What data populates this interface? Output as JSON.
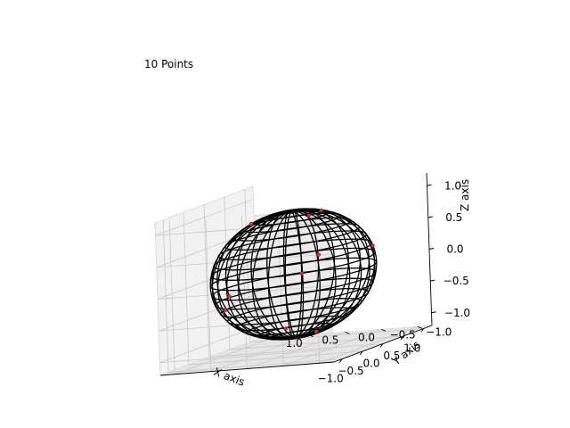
{
  "chart_data": {
    "type": "scatter",
    "projection": "3d",
    "title": "10 Points",
    "xlabel": "X axis",
    "ylabel": "Y axis",
    "zlabel": "Z axis",
    "xlim": [
      -1.2,
      1.2
    ],
    "ylim": [
      -1.2,
      1.2
    ],
    "zlim": [
      -1.2,
      1.2
    ],
    "x_ticks": [
      "−1.0",
      "−0.5",
      "0.0",
      "0.5",
      "1.0"
    ],
    "y_ticks": [
      "−1.0",
      "−0.5",
      "0.0",
      "0.5",
      "1.0"
    ],
    "z_ticks": [
      "−1.0",
      "−0.5",
      "0.0",
      "0.5",
      "1.0"
    ],
    "grid": true,
    "wireframe": {
      "shape": "unit sphere",
      "color": "#000000"
    },
    "series": [
      {
        "marker_color": "#d62728",
        "points": [
          {
            "x": 0.2,
            "y": -0.3,
            "z": 0.93
          },
          {
            "x": -0.1,
            "y": 0.5,
            "z": 0.86
          },
          {
            "x": 0.9,
            "y": 0.4,
            "z": -0.17
          },
          {
            "x": 0.45,
            "y": -0.85,
            "z": 0.27
          },
          {
            "x": -0.6,
            "y": -0.7,
            "z": 0.39
          },
          {
            "x": 0.3,
            "y": 0.3,
            "z": -0.9
          },
          {
            "x": -0.8,
            "y": 0.5,
            "z": -0.33
          },
          {
            "x": 0.6,
            "y": 0.1,
            "z": 0.79
          },
          {
            "x": -0.2,
            "y": -0.4,
            "z": -0.89
          },
          {
            "x": 0.1,
            "y": 0.95,
            "z": -0.29
          }
        ]
      }
    ]
  }
}
